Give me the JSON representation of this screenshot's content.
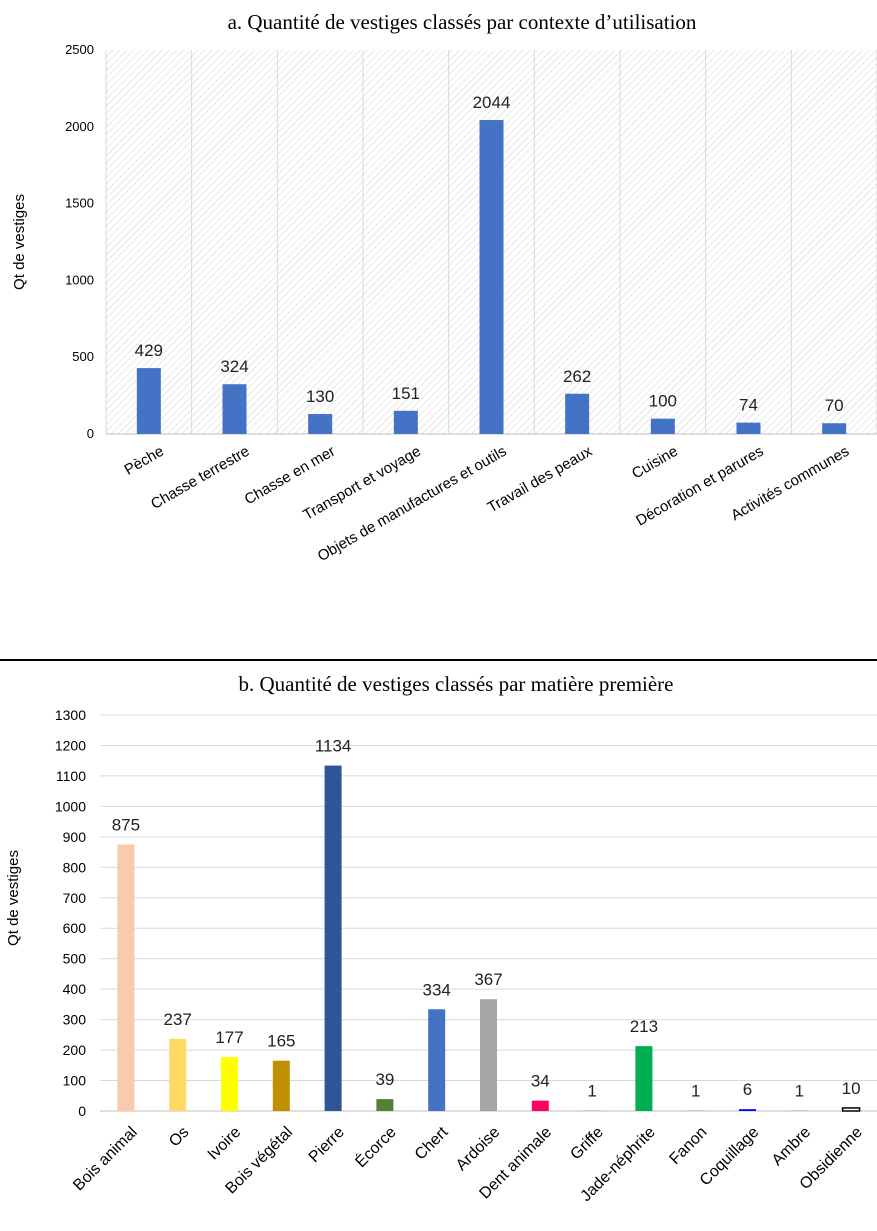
{
  "chart_data": [
    {
      "type": "bar",
      "title": "a. Quantité de vestiges classés par contexte d’utilisation",
      "ylabel": "Qt de vestiges",
      "ylim": [
        0,
        2500
      ],
      "yticks": [
        0,
        500,
        1000,
        1500,
        2000,
        2500
      ],
      "grid": "vertical lines, hatched plot background",
      "color": "#4472C4",
      "categories": [
        "Pèche",
        "Chasse terrestre",
        "Chasse en mer",
        "Transport et voyage",
        "Objets de manufactures et outils",
        "Travail des peaux",
        "Cuisine",
        "Décoration et parures",
        "Activités communes"
      ],
      "values": [
        429,
        324,
        130,
        151,
        2044,
        262,
        100,
        74,
        70
      ],
      "data_labels": [
        "429",
        "324",
        "130",
        "151",
        "2044",
        "262",
        "100",
        "74",
        "70"
      ]
    },
    {
      "type": "bar",
      "title": "b. Quantité de vestiges classés par matière première",
      "ylabel": "Qt de vestiges",
      "ylim": [
        0,
        1300
      ],
      "yticks": [
        0,
        100,
        200,
        300,
        400,
        500,
        600,
        700,
        800,
        900,
        1000,
        1100,
        1200,
        1300
      ],
      "grid": "horizontal lines",
      "categories": [
        "Bois animal",
        "Os",
        "Ivoire",
        "Bois végétal",
        "Pierre",
        "Écorce",
        "Chert",
        "Ardoise",
        "Dent animale",
        "Griffe",
        "Jade-néphrite",
        "Fanon",
        "Coquillage",
        "Ambre",
        "Obsidienne"
      ],
      "values": [
        875,
        237,
        177,
        165,
        1134,
        39,
        334,
        367,
        34,
        1,
        213,
        1,
        6,
        1,
        10
      ],
      "data_labels": [
        "875",
        "237",
        "177",
        "165",
        "1134",
        "39",
        "334",
        "367",
        "34",
        "1",
        "213",
        "1",
        "6",
        "1",
        "10"
      ],
      "colors": [
        "#F8CBAD",
        "#FFD966",
        "#FFFF00",
        "#BF9000",
        "#2F5597",
        "#548235",
        "#4472C4",
        "#A5A5A5",
        "#FF0066",
        "#7F7F7F",
        "#00B050",
        "#7F7F7F",
        "#0000FF",
        "#7F7F7F",
        "#FFFFFF"
      ]
    }
  ]
}
